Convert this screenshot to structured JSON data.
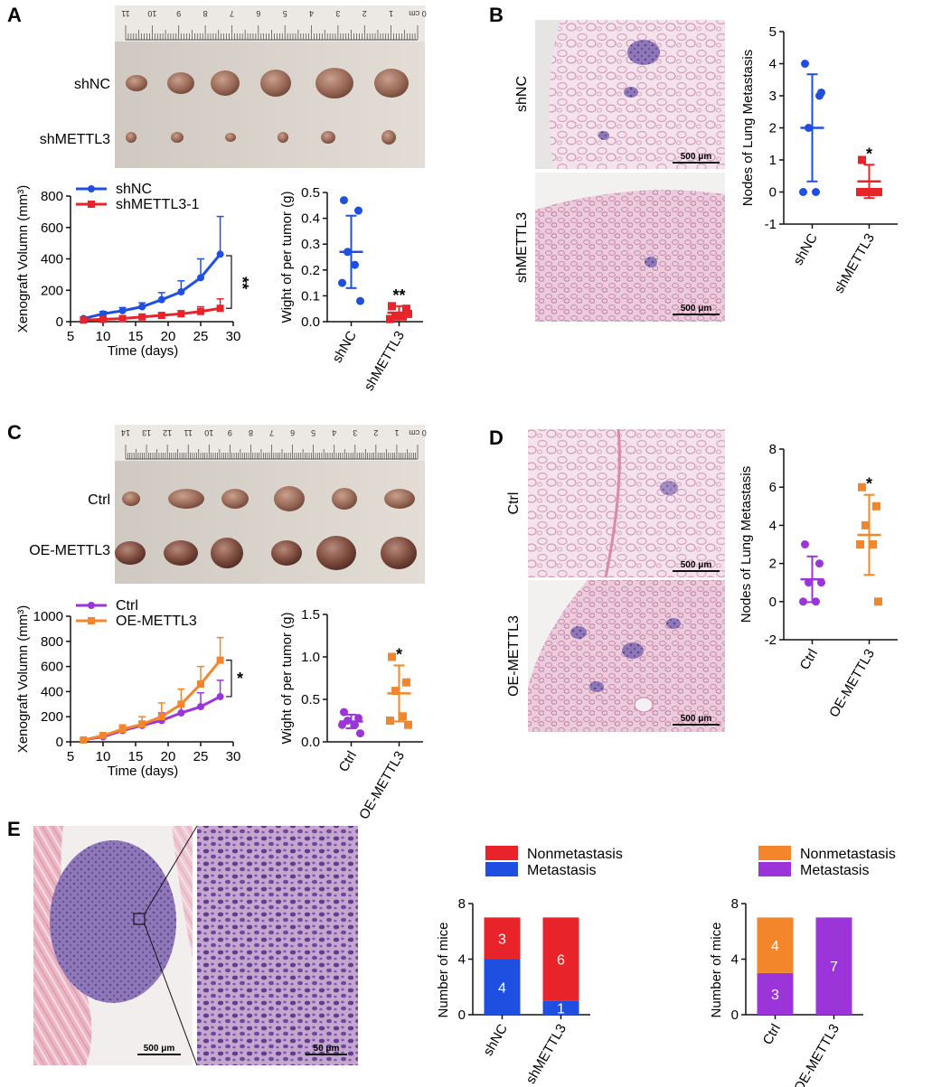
{
  "colors": {
    "shNC": "#1f4fe0",
    "shMETTL3": "#e8242a",
    "Ctrl": "#9b35d9",
    "OE-METTL3": "#f3862a",
    "he_bg": "#f2dde8",
    "he_dense": "#8d74b5",
    "photo_bg": "#d8d2cb",
    "tumor": "#9b6a58"
  },
  "panels": {
    "A": {
      "label": "A",
      "photo": {
        "row_labels": [
          "shNC",
          "shMETTL3"
        ],
        "ruler_numbers": [
          "11",
          "10",
          "9",
          "8",
          "7",
          "6",
          "5",
          "4",
          "3",
          "2",
          "1",
          "0 cm"
        ]
      },
      "growth": {
        "type": "line",
        "xlabel": "Time (days)",
        "ylabel": "Xenograft Volumn (mm³)",
        "xlim": [
          5,
          30
        ],
        "ylim": [
          0,
          800
        ],
        "xticks": [
          5,
          10,
          15,
          20,
          25,
          30
        ],
        "yticks": [
          0,
          200,
          400,
          600,
          800
        ],
        "x": [
          7,
          10,
          13,
          16,
          19,
          22,
          25,
          28
        ],
        "series": [
          {
            "name": "shNC",
            "color_key": "shNC",
            "marker": "circle",
            "values": [
              20,
              50,
              70,
              95,
              140,
              190,
              280,
              430
            ],
            "err": [
              10,
              15,
              20,
              25,
              45,
              70,
              120,
              240
            ]
          },
          {
            "name": "shMETTL3-1",
            "color_key": "shMETTL3",
            "marker": "square",
            "values": [
              10,
              15,
              20,
              30,
              40,
              50,
              65,
              85
            ],
            "err": [
              5,
              6,
              8,
              10,
              15,
              20,
              30,
              60
            ]
          }
        ],
        "significance": "**"
      },
      "weight": {
        "type": "scatter",
        "ylabel": "Wight of per tumor (g)",
        "ylim": [
          0,
          0.5
        ],
        "yticks": [
          0.0,
          0.1,
          0.2,
          0.3,
          0.4,
          0.5
        ],
        "yticklabels": [
          "0.0",
          "0.1",
          "0.2",
          "0.3",
          "0.4",
          "0.5"
        ],
        "categories": [
          "shNC",
          "shMETTL3"
        ],
        "groups": [
          {
            "name": "shNC",
            "color_key": "shNC",
            "marker": "circle",
            "points": [
              0.47,
              0.43,
              0.27,
              0.22,
              0.15,
              0.08
            ],
            "mean": 0.27,
            "sd": 0.14
          },
          {
            "name": "shMETTL3",
            "color_key": "shMETTL3",
            "marker": "square",
            "points": [
              0.06,
              0.05,
              0.02,
              0.02,
              0.01,
              0.03
            ],
            "mean": 0.035,
            "sd": 0.025
          }
        ],
        "significance": [
          "",
          "**"
        ]
      }
    },
    "B": {
      "label": "B",
      "histology": {
        "row_labels": [
          "shNC",
          "shMETTL3"
        ],
        "scale_bar": "500 μm"
      },
      "nodes": {
        "type": "scatter",
        "ylabel": "Nodes of Lung Metastasis",
        "ylim": [
          -1,
          5
        ],
        "yticks": [
          -1,
          0,
          1,
          2,
          3,
          4,
          5
        ],
        "categories": [
          "shNC",
          "shMETTL3"
        ],
        "groups": [
          {
            "name": "shNC",
            "color_key": "shNC",
            "marker": "circle",
            "points": [
              4,
              3,
              2,
              0,
              0,
              3.1
            ],
            "mean": 2.0,
            "sd": 1.67
          },
          {
            "name": "shMETTL3",
            "color_key": "shMETTL3",
            "marker": "square",
            "points": [
              1,
              0,
              0,
              0,
              0,
              0
            ],
            "mean": 0.33,
            "sd": 0.52
          }
        ],
        "significance": [
          "",
          "*"
        ]
      }
    },
    "C": {
      "label": "C",
      "photo": {
        "row_labels": [
          "Ctrl",
          "OE-METTL3"
        ],
        "ruler_numbers": [
          "14",
          "13",
          "12",
          "11",
          "10",
          "9",
          "8",
          "7",
          "6",
          "5",
          "4",
          "3",
          "2",
          "1",
          "0 cm"
        ]
      },
      "growth": {
        "type": "line",
        "xlabel": "Time (days)",
        "ylabel": "Xenograft Volumn (mm³)",
        "xlim": [
          5,
          30
        ],
        "ylim": [
          0,
          1000
        ],
        "xticks": [
          5,
          10,
          15,
          20,
          25,
          30
        ],
        "yticks": [
          0,
          200,
          400,
          600,
          800,
          1000
        ],
        "x": [
          7,
          10,
          13,
          16,
          19,
          22,
          25,
          28
        ],
        "series": [
          {
            "name": "Ctrl",
            "color_key": "Ctrl",
            "marker": "circle",
            "values": [
              15,
              40,
              90,
              130,
              170,
              230,
              280,
              360
            ],
            "err": [
              8,
              15,
              25,
              35,
              60,
              80,
              110,
              130
            ]
          },
          {
            "name": "OE-METTL3",
            "color_key": "OE-METTL3",
            "marker": "square",
            "values": [
              15,
              50,
              100,
              140,
              200,
              300,
              460,
              650
            ],
            "err": [
              8,
              20,
              35,
              60,
              110,
              120,
              140,
              180
            ]
          }
        ],
        "significance": "*"
      },
      "weight": {
        "type": "scatter",
        "ylabel": "Wight of per tumor (g)",
        "ylim": [
          0,
          1.5
        ],
        "yticks": [
          0.0,
          0.5,
          1.0,
          1.5
        ],
        "yticklabels": [
          "0.0",
          "0.5",
          "1.0",
          "1.5"
        ],
        "categories": [
          "Ctrl",
          "OE-METTL3"
        ],
        "groups": [
          {
            "name": "Ctrl",
            "color_key": "Ctrl",
            "marker": "circle",
            "points": [
              0.35,
              0.28,
              0.25,
              0.2,
              0.2,
              0.1
            ],
            "mean": 0.24,
            "sd": 0.08
          },
          {
            "name": "OE-METTL3",
            "color_key": "OE-METTL3",
            "marker": "square",
            "points": [
              1.0,
              0.7,
              0.6,
              0.3,
              0.25,
              0.2
            ],
            "mean": 0.57,
            "sd": 0.33
          }
        ],
        "significance": [
          "",
          "*"
        ]
      }
    },
    "D": {
      "label": "D",
      "histology": {
        "row_labels": [
          "Ctrl",
          "OE-METTL3"
        ],
        "scale_bar": "500 μm"
      },
      "nodes": {
        "type": "scatter",
        "ylabel": "Nodes of Lung Metastasis",
        "ylim": [
          -2,
          8
        ],
        "yticks": [
          -2,
          0,
          2,
          4,
          6,
          8
        ],
        "categories": [
          "Ctrl",
          "OE-METTL3"
        ],
        "groups": [
          {
            "name": "Ctrl",
            "color_key": "Ctrl",
            "marker": "circle",
            "points": [
              3,
              2,
              1,
              0,
              0,
              1
            ],
            "mean": 1.17,
            "sd": 1.2
          },
          {
            "name": "OE-METTL3",
            "color_key": "OE-METTL3",
            "marker": "square",
            "points": [
              6,
              5,
              4,
              3,
              3,
              0
            ],
            "mean": 3.5,
            "sd": 2.1
          },
          {
            "name": "",
            "color_key": "OE-METTL3",
            "marker": "square",
            "points": [],
            "mean": null,
            "sd": null
          }
        ],
        "significance": [
          "",
          "*"
        ]
      }
    },
    "E": {
      "label": "E",
      "histology": {
        "scale_bars": [
          "500 μm",
          "50 μm"
        ]
      },
      "bars_left": {
        "type": "bar",
        "ylabel": "Number of mice",
        "ylim": [
          0,
          8
        ],
        "yticks": [
          0,
          4,
          8
        ],
        "categories": [
          "shNC",
          "shMETTL3"
        ],
        "series": [
          {
            "name": "Metastasis",
            "color_key": "shNC",
            "values": [
              4,
              1
            ]
          },
          {
            "name": "Nonmetastasis",
            "color_key": "shMETTL3",
            "values": [
              3,
              6
            ]
          }
        ],
        "legend_order": [
          "Nonmetastasis",
          "Metastasis"
        ],
        "legend_colors": [
          "shMETTL3",
          "shNC"
        ]
      },
      "bars_right": {
        "type": "bar",
        "ylabel": "Number of mice",
        "ylim": [
          0,
          8
        ],
        "yticks": [
          0,
          4,
          8
        ],
        "categories": [
          "Ctrl",
          "OE-METTL3"
        ],
        "series": [
          {
            "name": "Metastasis",
            "color_key": "Ctrl",
            "values": [
              3,
              7
            ]
          },
          {
            "name": "Nonmetastasis",
            "color_key": "OE-METTL3",
            "values": [
              4,
              0
            ]
          }
        ],
        "legend_order": [
          "Nonmetastasis",
          "Metastasis"
        ],
        "legend_colors": [
          "OE-METTL3",
          "Ctrl"
        ]
      }
    }
  }
}
